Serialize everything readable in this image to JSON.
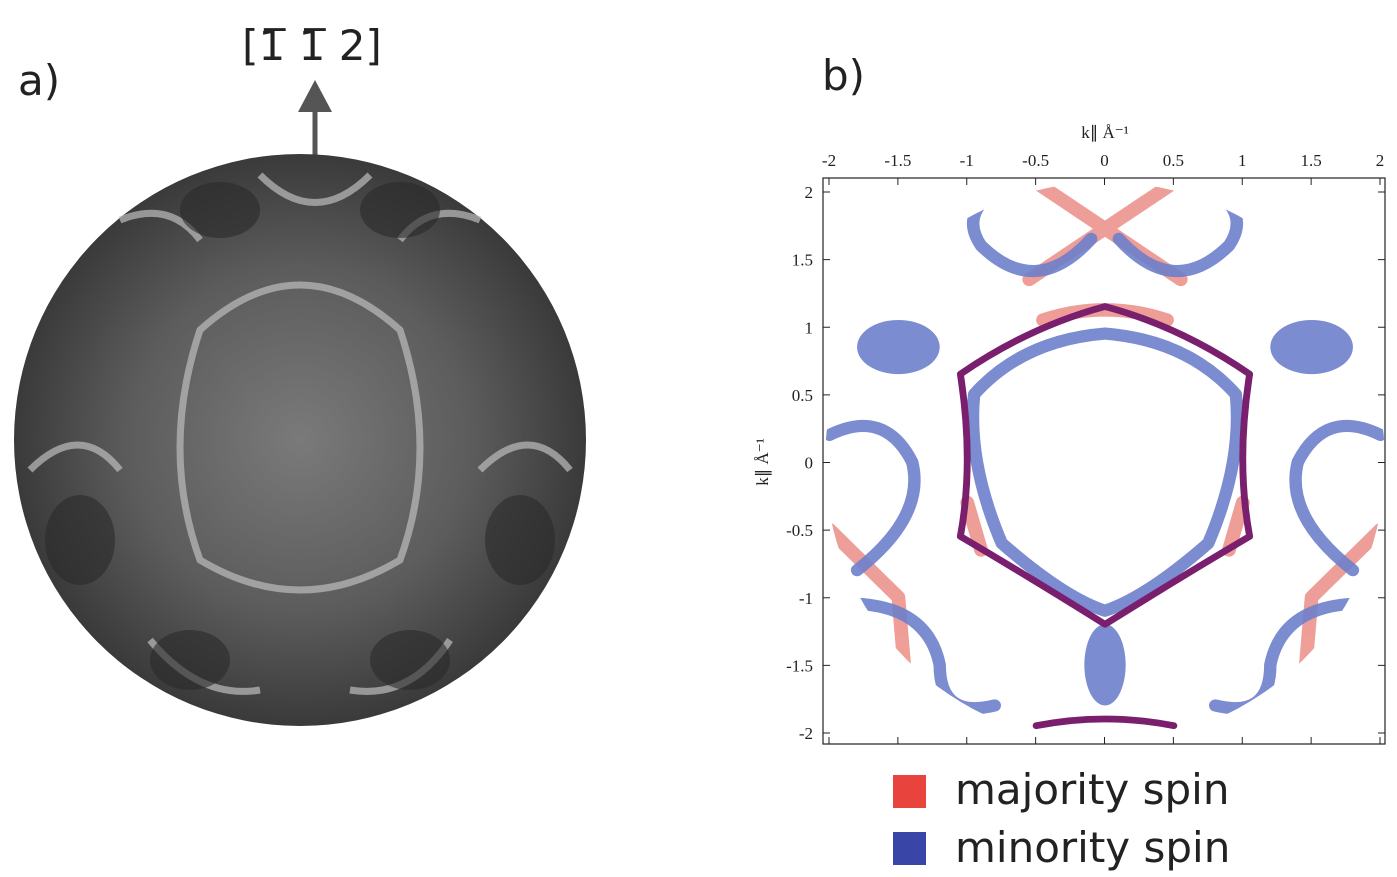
{
  "panel_a": {
    "label": "a)",
    "direction": "[1̅ 1̅ 2]"
  },
  "chart_data": {
    "type": "image",
    "label": "b)",
    "xlabel": "k∥ Å⁻¹",
    "ylabel": "k∥ Å⁻¹",
    "xlim": [
      -2,
      2
    ],
    "ylim": [
      -2,
      2
    ],
    "xticks": [
      -2,
      -1.5,
      -1,
      -0.5,
      0,
      0.5,
      1,
      1.5,
      2
    ],
    "yticks": [
      -2,
      -1.5,
      -1,
      -0.5,
      0,
      0.5,
      1,
      1.5,
      2
    ],
    "legend": [
      {
        "name": "majority spin",
        "color": "#e8433c"
      },
      {
        "name": "minority spin",
        "color": "#3a45a8"
      }
    ]
  }
}
